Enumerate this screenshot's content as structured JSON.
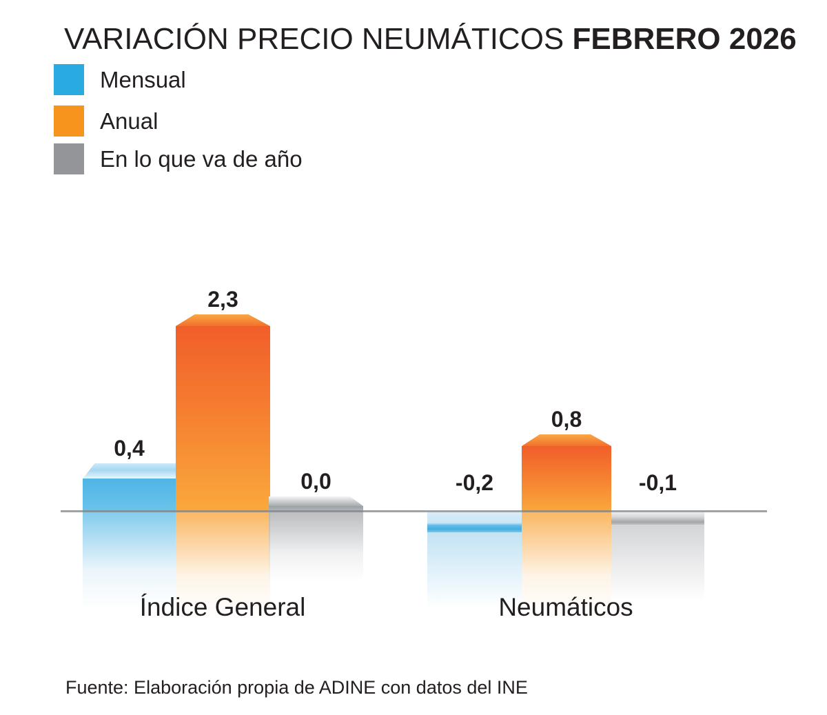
{
  "title": {
    "regular": "VARIACIÓN PRECIO NEUMÁTICOS ",
    "bold": "FEBRERO 2026"
  },
  "legend": [
    {
      "label": "Mensual",
      "color": "#29ABE2"
    },
    {
      "label": "Anual",
      "color": "#F7941E"
    },
    {
      "label": "En lo que va de año",
      "color": "#939598"
    }
  ],
  "chart_data": {
    "type": "bar",
    "title": "VARIACIÓN PRECIO NEUMÁTICOS FEBRERO 2026",
    "categories": [
      "Índice General",
      "Neumáticos"
    ],
    "series": [
      {
        "name": "Mensual",
        "color": "#29ABE2",
        "values": [
          0.4,
          -0.2
        ],
        "labels": [
          "0,4",
          "-0,2"
        ]
      },
      {
        "name": "Anual",
        "color": "#F7941E",
        "values": [
          2.3,
          0.8
        ],
        "labels": [
          "2,3",
          "0,8"
        ]
      },
      {
        "name": "En lo que va de año",
        "color": "#939598",
        "values": [
          0.0,
          -0.1
        ],
        "labels": [
          "0,0",
          "-0,1"
        ]
      }
    ],
    "xlabel": "",
    "ylabel": "",
    "ylim": [
      -0.4,
      2.5
    ],
    "baseline": 0,
    "grid": false,
    "axis_ticks": false,
    "legend_position": "top-left",
    "value_label_format": "comma-decimal",
    "style": "3d-beveled-bars-with-reflection"
  },
  "source": "Fuente: Elaboración propia de ADINE con datos del INE"
}
